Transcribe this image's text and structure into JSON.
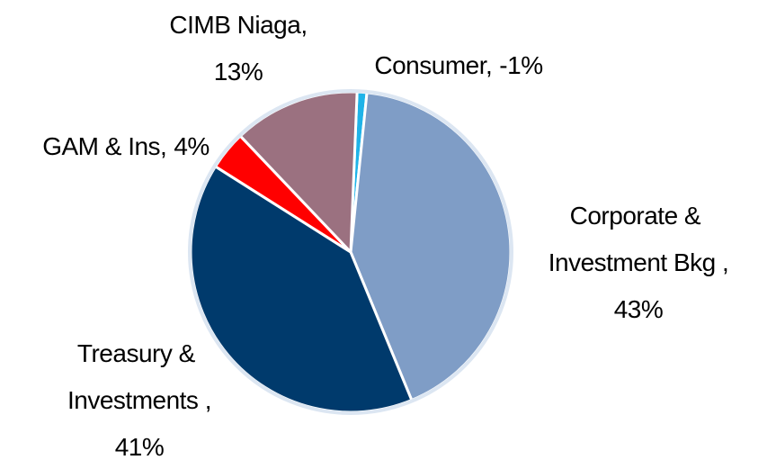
{
  "chart_data": {
    "type": "pie",
    "categories": [
      "Consumer,",
      "Corporate & Investment Bkg ,",
      "Treasury & Investments ,",
      "GAM & Ins,",
      "CIMB Niaga,"
    ],
    "values": [
      -1,
      43,
      41,
      4,
      13
    ],
    "value_labels": [
      "-1%",
      "43%",
      "41%",
      "4%",
      "13%"
    ],
    "colors": [
      "#1fb3e8",
      "#7f9dc6",
      "#003a6c",
      "#ff0000",
      "#9b7180"
    ]
  }
}
